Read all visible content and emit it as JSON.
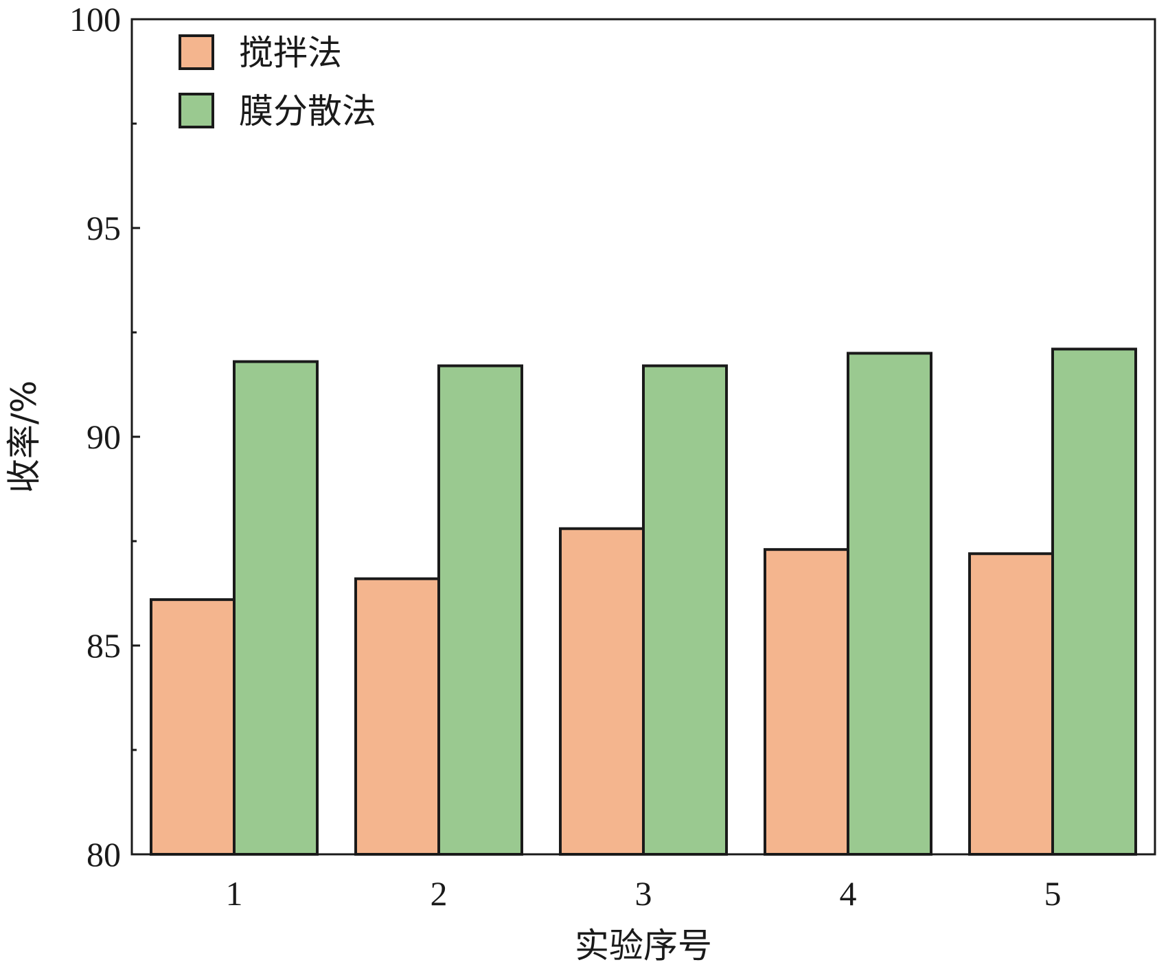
{
  "chart_data": {
    "type": "bar",
    "categories": [
      "1",
      "2",
      "3",
      "4",
      "5"
    ],
    "series": [
      {
        "name": "搅拌法",
        "color": "#f4b58e",
        "values": [
          86.1,
          86.6,
          87.8,
          87.3,
          87.2
        ]
      },
      {
        "name": "膜分散法",
        "color": "#9ac990",
        "values": [
          91.8,
          91.7,
          91.7,
          92.0,
          92.1
        ]
      }
    ],
    "xlabel": "实验序号",
    "ylabel": "收率/%",
    "ylim": [
      80,
      100
    ],
    "yticks": [
      80,
      85,
      90,
      95,
      100
    ],
    "yminor_step": 2.5,
    "legend_position": "top-left",
    "grid": false
  }
}
